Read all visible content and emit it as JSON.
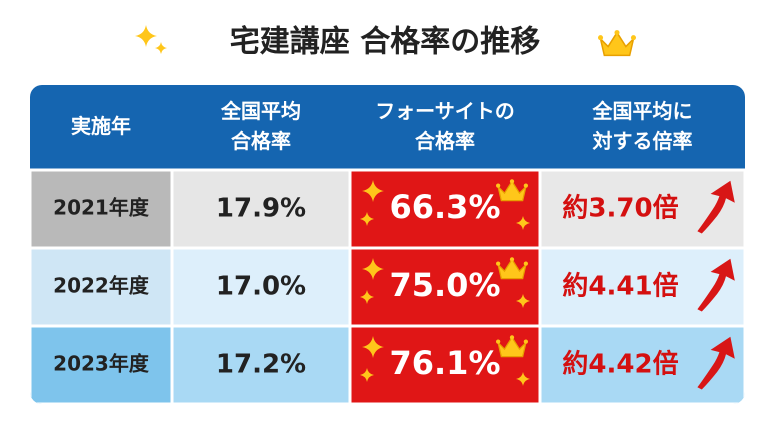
{
  "title": "宅建講座 合格率の推移",
  "table": {
    "header": [
      [
        "実施年"
      ],
      [
        "全国平均",
        "合格率"
      ],
      [
        "フォーサイトの",
        "合格率"
      ],
      [
        "全国平均に",
        "対する倍率"
      ]
    ],
    "rows": [
      [
        "2021年度",
        "17.9%",
        "66.3%",
        "約3.70倍"
      ],
      [
        "2022年度",
        "17.0%",
        "75.0%",
        "約4.41倍"
      ],
      [
        "2023年度",
        "17.2%",
        "76.1%",
        "約4.42倍"
      ]
    ]
  }
}
